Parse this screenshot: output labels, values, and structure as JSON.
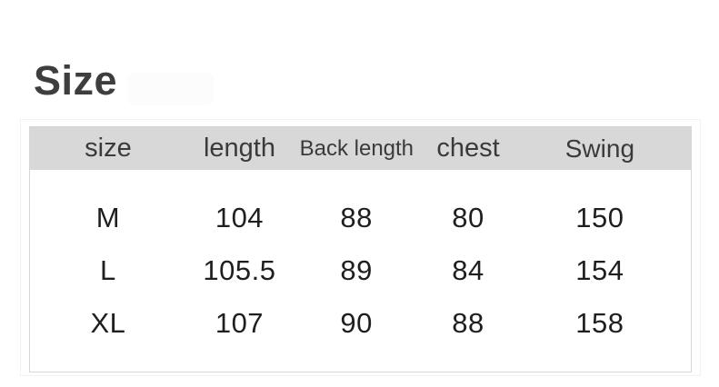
{
  "page": {
    "title": "Size"
  },
  "size_table": {
    "headers": [
      "size",
      "length",
      "Back length",
      "chest",
      "Swing"
    ],
    "rows": [
      [
        "M",
        "104",
        "88",
        "80",
        "150"
      ],
      [
        "L",
        "105.5",
        "89",
        "84",
        "154"
      ],
      [
        "XL",
        "107",
        "90",
        "88",
        "158"
      ]
    ]
  },
  "colors": {
    "header_row_bg": "#d8d8d8",
    "table_border": "#d6d6d6",
    "outer_frame_border": "#f2f2f2",
    "title_text": "#3e3e3e",
    "header_text": "#3a3a3a",
    "cell_text": "#1f1f1f",
    "page_bg": "#ffffff"
  }
}
